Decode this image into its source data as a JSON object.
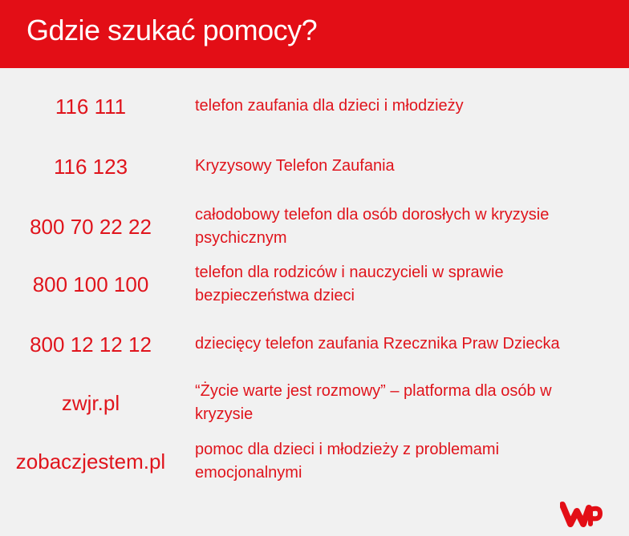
{
  "header": {
    "title": "Gdzie szukać pomocy?"
  },
  "entries": [
    {
      "number": "116 111",
      "description": "telefon zaufania dla dzieci i młodzieży"
    },
    {
      "number": "116 123",
      "description": "Kryzysowy Telefon Zaufania"
    },
    {
      "number": "800 70 22 22",
      "description": "całodobowy telefon dla osób dorosłych w kryzysie psychicznym"
    },
    {
      "number": "800 100 100",
      "description": "telefon dla rodziców i nauczycieli w sprawie bezpieczeństwa dzieci"
    },
    {
      "number": "800 12 12 12",
      "description": "dziecięcy telefon zaufania Rzecznika Praw Dziecka"
    },
    {
      "number": "zwjr.pl",
      "description": "“Życie warte jest rozmowy” – platforma dla osób w kryzysie"
    },
    {
      "number": "zobaczjestem.pl",
      "description": "pomoc dla dzieci i młodzieży z problemami emocjonalnymi"
    }
  ],
  "logo": {
    "text": "WP",
    "color": "#e30e16"
  },
  "colors": {
    "accent": "#e30e16",
    "background": "#f1f1f1"
  }
}
